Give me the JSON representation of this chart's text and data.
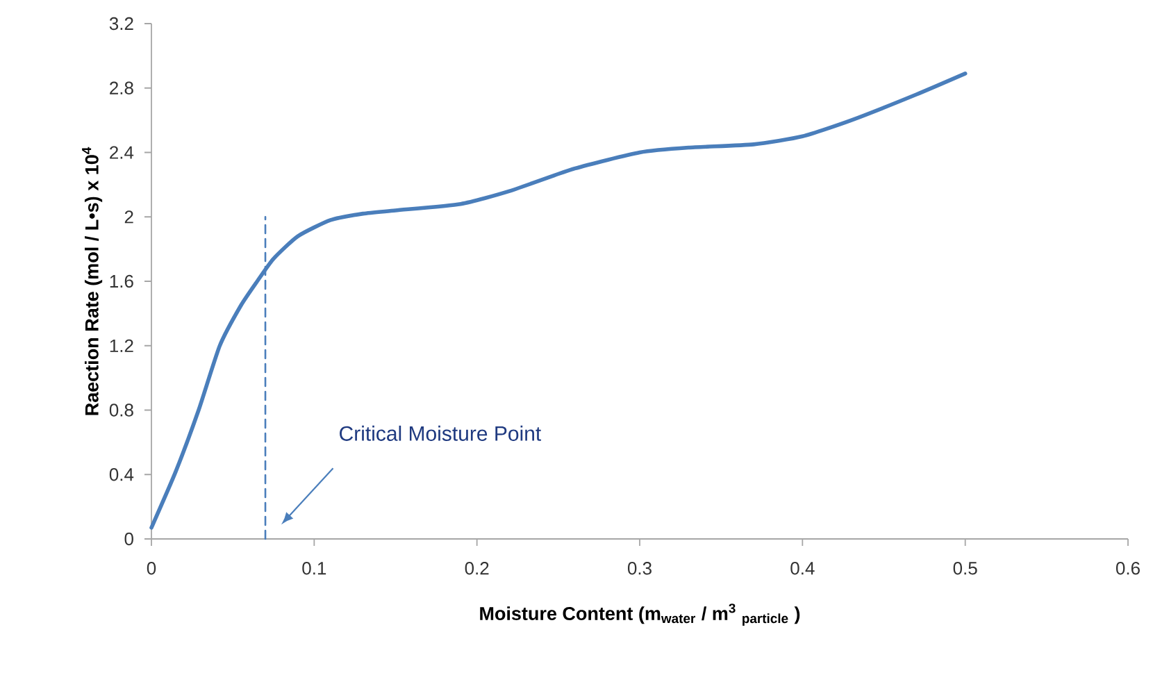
{
  "chart_data": {
    "type": "line",
    "xlabel": "Moisture Content (m$_{water}$ / m$^{3}$ $_{particle}$ )",
    "ylabel": "Raection Rate  (mol / L•s)  x 10$^{4}$",
    "xlim": [
      0,
      0.6
    ],
    "xticks": [
      0,
      0.1,
      0.2,
      0.3,
      0.4,
      0.5,
      0.6
    ],
    "ylim": [
      0,
      3.2
    ],
    "yticks": [
      0,
      0.4,
      0.8,
      1.2,
      1.6,
      2,
      2.4,
      2.8,
      3.2
    ],
    "series": [
      {
        "color": "#4a7ebb",
        "x": [
          0,
          0.015,
          0.029,
          0.042,
          0.055,
          0.065,
          0.075,
          0.09,
          0.11,
          0.13,
          0.15,
          0.19,
          0.22,
          0.26,
          0.3,
          0.33,
          0.37,
          0.4,
          0.43,
          0.47,
          0.5
        ],
        "values": [
          0.07,
          0.42,
          0.8,
          1.2,
          1.45,
          1.6,
          1.74,
          1.88,
          1.98,
          2.02,
          2.04,
          2.08,
          2.16,
          2.3,
          2.4,
          2.43,
          2.45,
          2.5,
          2.6,
          2.76,
          2.89
        ]
      },
      {
        "type": "line",
        "line_style": "dashed",
        "color": "#4a7ebb",
        "x": [
          0.07,
          0.07
        ],
        "values": [
          0,
          2
        ]
      }
    ],
    "annotations": [
      "Critical Moisture Point"
    ],
    "grid": false
  }
}
